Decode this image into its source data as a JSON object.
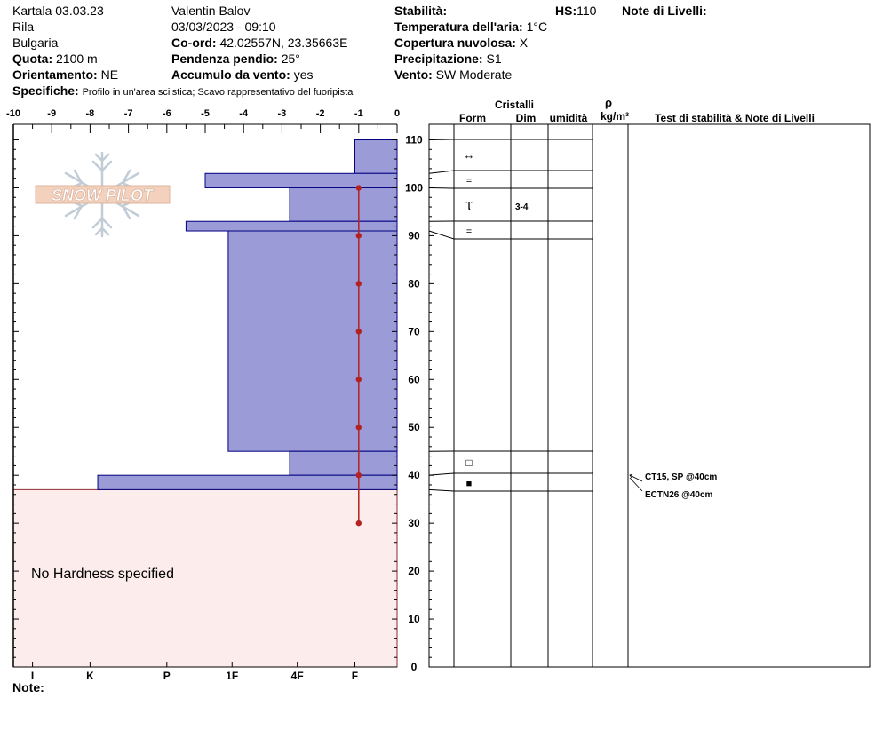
{
  "header": {
    "location": "Kartala 03.03.23",
    "range": "Rila",
    "country": "Bulgaria",
    "elevation_label": "Quota:",
    "elevation_value": "2100 m",
    "aspect_label": "Orientamento:",
    "aspect_value": "NE",
    "specifics_label": "Specifiche:",
    "specifics_value": "Profilo in un'area sciistica; Scavo rappresentativo del fuoripista",
    "observer": "Valentin Balov",
    "datetime": "03/03/2023 - 09:10",
    "coord_label": "Co-ord:",
    "coord_value": "42.02557N, 23.35663E",
    "slope_label": "Pendenza pendio:",
    "slope_value": "25°",
    "wind_load_label": "Accumulo da vento:",
    "wind_load_value": "yes",
    "stability_label": "Stabilità:",
    "stability_value": "",
    "hs_label": "HS:",
    "hs_value": "110",
    "layer_notes_label": "Note di Livelli:",
    "air_temp_label": "Temperatura dell'aria:",
    "air_temp_value": "1°C",
    "cloud_label": "Copertura nuvolosa:",
    "cloud_value": "X",
    "precip_label": "Precipitazione:",
    "precip_value": "S1",
    "wind_label": "Vento:",
    "wind_value": "SW Moderate"
  },
  "table": {
    "crystals_header": "Cristalli",
    "form_header": "Form",
    "size_header": "Dim",
    "moisture_header": "umidità",
    "density_symbol": "ρ",
    "density_unit": "kg/m³",
    "stability_header": "Test di stabilità & Note di Livelli",
    "layer_rows": [
      {
        "symbol": "↔",
        "size": ""
      },
      {
        "symbol": "=",
        "size": ""
      },
      {
        "symbol": "Ⲧ",
        "size": "3-4"
      },
      {
        "symbol": "=",
        "size": ""
      },
      {
        "symbol": "□",
        "size": ""
      },
      {
        "symbol": "■",
        "size": ""
      }
    ],
    "stability_tests": [
      "CT15, SP @40cm",
      "ECTN26 @40cm"
    ]
  },
  "footer": {
    "note_label": "Note:",
    "no_hardness": "No Hardness specified",
    "logo_text": "SNOW PILOT"
  },
  "colors": {
    "hardness_fill": "#9b9bd7",
    "hardness_stroke": "#000080",
    "temperature": "#b22222",
    "no_hardness_fill": "#fdecec",
    "no_hardness_stroke": "#8b2d2d"
  },
  "chart_data": {
    "type": "bar",
    "orientation": "horizontal",
    "xlabel_top_ticks": [
      "-10",
      "-9",
      "-8",
      "-7",
      "-6",
      "-5",
      "-4",
      "-3",
      "-2",
      "-1",
      "0"
    ],
    "xlabel_bottom_ticks": [
      "I",
      "K",
      "P",
      "1F",
      "4F",
      "F"
    ],
    "y_ticks": [
      "0",
      "10",
      "20",
      "30",
      "40",
      "50",
      "60",
      "70",
      "80",
      "90",
      "100",
      "110"
    ],
    "ylim": [
      0,
      110
    ],
    "xlim": [
      -10,
      0
    ],
    "hardness_layers": [
      {
        "top": 110,
        "bottom": 103,
        "x": -1.1
      },
      {
        "top": 103,
        "bottom": 100,
        "x": -5.0
      },
      {
        "top": 100,
        "bottom": 93,
        "x": -2.8
      },
      {
        "top": 93,
        "bottom": 91,
        "x": -5.5
      },
      {
        "top": 91,
        "bottom": 45,
        "x": -4.4
      },
      {
        "top": 45,
        "bottom": 40,
        "x": -2.8
      },
      {
        "top": 40,
        "bottom": 37,
        "x": -7.8
      }
    ],
    "temperature_profile": [
      {
        "depth": 100,
        "temp": -1
      },
      {
        "depth": 90,
        "temp": -1
      },
      {
        "depth": 80,
        "temp": -1
      },
      {
        "depth": 70,
        "temp": -1
      },
      {
        "depth": 60,
        "temp": -1
      },
      {
        "depth": 50,
        "temp": -1
      },
      {
        "depth": 40,
        "temp": -1
      },
      {
        "depth": 30,
        "temp": -1
      }
    ],
    "no_hardness_below": 37,
    "layer_boundaries": [
      110,
      103,
      100,
      93,
      91,
      45,
      40,
      37
    ],
    "stability_test_depth": 40
  }
}
